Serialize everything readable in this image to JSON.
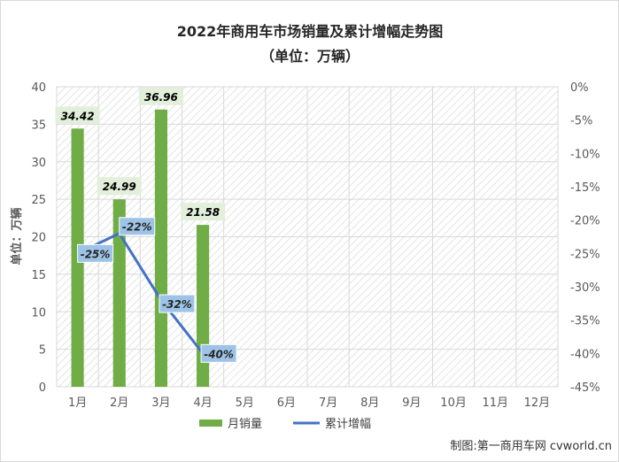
{
  "chart_data": {
    "type": "bar",
    "title": "2022年商用车市场销量及累计增幅走势图",
    "subtitle": "（单位：万辆）",
    "ylabel": "单位：万辆",
    "categories": [
      "1月",
      "2月",
      "3月",
      "4月",
      "5月",
      "6月",
      "7月",
      "8月",
      "9月",
      "10月",
      "11月",
      "12月"
    ],
    "ylim": [
      0,
      40
    ],
    "yticks": [
      0,
      5,
      10,
      15,
      20,
      25,
      30,
      35,
      40
    ],
    "y2lim": [
      -45,
      0
    ],
    "y2ticks": [
      "0%",
      "-5%",
      "-10%",
      "-15%",
      "-20%",
      "-25%",
      "-30%",
      "-35%",
      "-40%",
      "-45%"
    ],
    "y2tick_values": [
      0,
      -5,
      -10,
      -15,
      -20,
      -25,
      -30,
      -35,
      -40,
      -45
    ],
    "grid": true,
    "legend_position": "bottom",
    "series": [
      {
        "name": "月销量",
        "type": "bar",
        "axis": "left",
        "color": "#70ad47",
        "values": [
          34.42,
          24.99,
          36.96,
          21.58,
          null,
          null,
          null,
          null,
          null,
          null,
          null,
          null
        ],
        "labels": [
          "34.42",
          "24.99",
          "36.96",
          "21.58"
        ]
      },
      {
        "name": "累计增幅",
        "type": "line",
        "axis": "right",
        "color": "#4472c4",
        "values": [
          -25,
          -22,
          -32,
          -40,
          null,
          null,
          null,
          null,
          null,
          null,
          null,
          null
        ],
        "labels": [
          "-25%",
          "-22%",
          "-32%",
          "-40%"
        ]
      }
    ]
  },
  "footer": "制图:第一商用车网 cvworld.cn",
  "colors": {
    "bar_label_bg": "#e2efda",
    "line_label_bg": "#9dc3e6",
    "grid": "#d9d9d9"
  }
}
